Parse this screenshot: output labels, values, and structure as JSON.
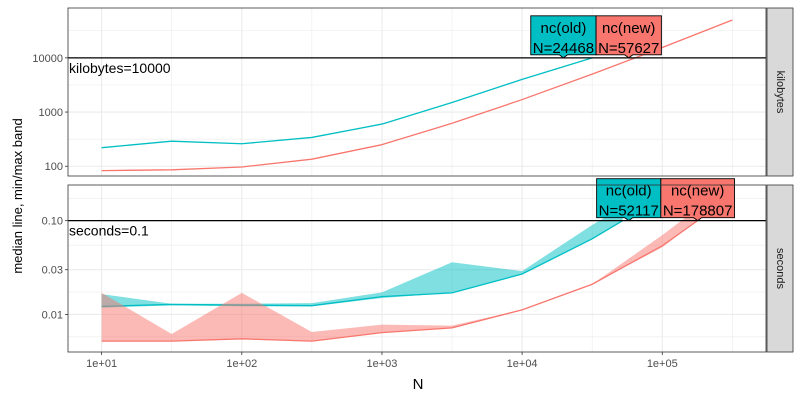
{
  "chart_data": {
    "type": "line",
    "xlabel": "N",
    "ylabel": "median line, min/max band",
    "x_scale": "log10",
    "x_ticks": [
      10,
      100,
      1000,
      10000,
      100000
    ],
    "x_tick_labels": [
      "1e+01",
      "1e+02",
      "1e+03",
      "1e+04",
      "1e+05"
    ],
    "colors": {
      "nc(old)": "#00BFC4",
      "nc(new)": "#F8766D"
    },
    "panels": [
      {
        "strip": "kilobytes",
        "y_scale": "log10",
        "y_ticks": [
          100,
          1000,
          10000
        ],
        "y_tick_labels": [
          "100",
          "1000",
          "10000"
        ],
        "reference": {
          "value": 10000,
          "label": "kilobytes=10000"
        },
        "series": [
          {
            "name": "nc(old)",
            "x": [
              10,
              31.6,
              100,
              316,
              1000,
              3162,
              10000,
              31623
            ],
            "median": [
              220,
              290,
              260,
              340,
              600,
              1500,
              4000,
              10000
            ],
            "min": [
              220,
              290,
              260,
              340,
              600,
              1500,
              4000,
              10000
            ],
            "max": [
              220,
              290,
              260,
              340,
              600,
              1500,
              4000,
              10000
            ]
          },
          {
            "name": "nc(new)",
            "x": [
              10,
              31.6,
              100,
              316,
              1000,
              3162,
              10000,
              31623,
              100000,
              316228
            ],
            "median": [
              83,
              86,
              97,
              135,
              250,
              620,
              1700,
              5000,
              15500,
              50000
            ],
            "min": [
              83,
              86,
              97,
              135,
              250,
              620,
              1700,
              5000,
              15500,
              50000
            ],
            "max": [
              83,
              86,
              97,
              135,
              250,
              620,
              1700,
              5000,
              15500,
              50000
            ]
          }
        ],
        "labels": [
          {
            "series": "nc(old)",
            "line1": "nc(old)",
            "line2": "N=24468",
            "n": 24468
          },
          {
            "series": "nc(new)",
            "line1": "nc(new)",
            "line2": "N=57627",
            "n": 57627
          }
        ]
      },
      {
        "strip": "seconds",
        "y_scale": "log10",
        "y_ticks": [
          0.01,
          0.03,
          0.1
        ],
        "y_tick_labels": [
          "0.01",
          "0.03",
          "0.10"
        ],
        "reference": {
          "value": 0.1,
          "label": "seconds=0.1"
        },
        "series": [
          {
            "name": "nc(old)",
            "x": [
              10,
              31.6,
              100,
              316,
              1000,
              3162,
              10000,
              31623,
              52117
            ],
            "median": [
              0.0122,
              0.0128,
              0.0126,
              0.0124,
              0.0155,
              0.017,
              0.027,
              0.064,
              0.1
            ],
            "min": [
              0.0118,
              0.0125,
              0.0122,
              0.0122,
              0.015,
              0.017,
              0.027,
              0.064,
              0.1
            ],
            "max": [
              0.0165,
              0.013,
              0.013,
              0.0132,
              0.0172,
              0.036,
              0.029,
              0.09,
              0.14
            ]
          },
          {
            "name": "nc(new)",
            "x": [
              10,
              31.6,
              100,
              316,
              1000,
              3162,
              10000,
              31623,
              100000,
              178807
            ],
            "median": [
              0.0052,
              0.0052,
              0.0055,
              0.0052,
              0.0064,
              0.0072,
              0.0112,
              0.021,
              0.054,
              0.1
            ],
            "min": [
              0.0052,
              0.0052,
              0.0055,
              0.0052,
              0.0064,
              0.0072,
              0.0112,
              0.021,
              0.052,
              0.1
            ],
            "max": [
              0.017,
              0.0062,
              0.017,
              0.0065,
              0.0078,
              0.0076,
              0.0112,
              0.021,
              0.07,
              0.135
            ]
          }
        ],
        "labels": [
          {
            "series": "nc(old)",
            "line1": "nc(old)",
            "line2": "N=52117",
            "n": 52117
          },
          {
            "series": "nc(new)",
            "line1": "nc(new)",
            "line2": "N=178807",
            "n": 178807
          }
        ]
      }
    ]
  }
}
